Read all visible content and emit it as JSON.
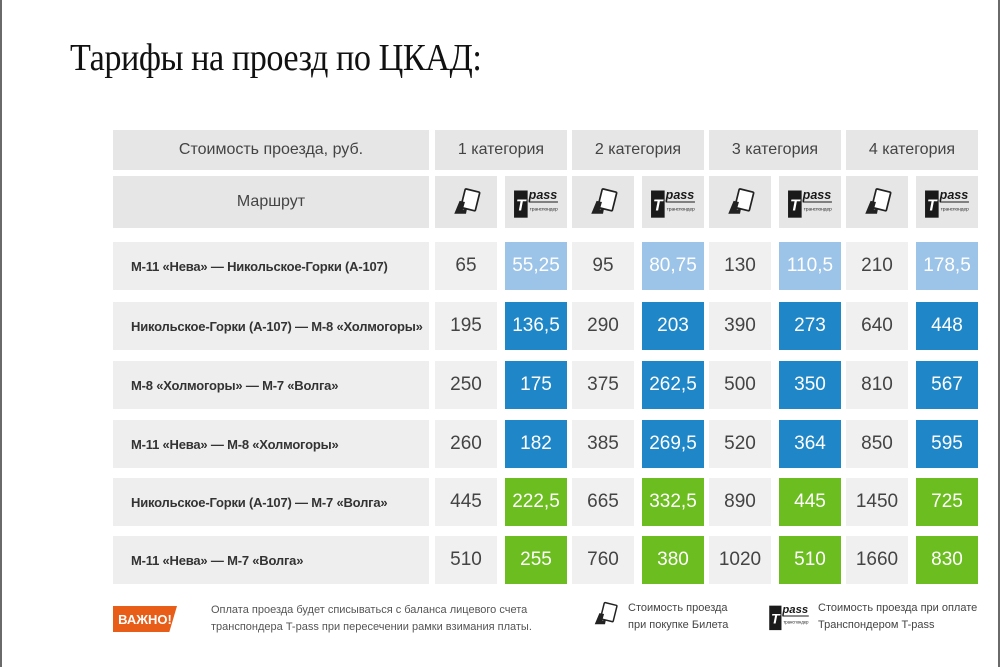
{
  "title": "Тарифы на проезд по ЦКАД:",
  "header": {
    "cost_label": "Стоимость проезда, руб.",
    "route_label": "Маршрут",
    "categories": [
      "1 категория",
      "2 категория",
      "3 категория",
      "4 категория"
    ],
    "tpass_word": "pass",
    "tpass_sub": "транспондер"
  },
  "rows": [
    {
      "route": "М-11 «Нева» — Никольское-Горки (А-107)",
      "values": [
        "65",
        "55,25",
        "95",
        "80,75",
        "130",
        "110,5",
        "210",
        "178,5"
      ],
      "tpass_style": "light"
    },
    {
      "route": "Никольское-Горки (А-107) — М-8 «Холмогоры»",
      "values": [
        "195",
        "136,5",
        "290",
        "203",
        "390",
        "273",
        "640",
        "448"
      ],
      "tpass_style": "blue"
    },
    {
      "route": "М-8 «Холмогоры» — М-7 «Волга»",
      "values": [
        "250",
        "175",
        "375",
        "262,5",
        "500",
        "350",
        "810",
        "567"
      ],
      "tpass_style": "blue"
    },
    {
      "route": "М-11 «Нева» — М-8 «Холмогоры»",
      "values": [
        "260",
        "182",
        "385",
        "269,5",
        "520",
        "364",
        "850",
        "595"
      ],
      "tpass_style": "blue"
    },
    {
      "route": "Никольское-Горки (А-107) — М-7 «Волга»",
      "values": [
        "445",
        "222,5",
        "665",
        "332,5",
        "890",
        "445",
        "1450",
        "725"
      ],
      "tpass_style": "green"
    },
    {
      "route": "М-11 «Нева» — М-7 «Волга»",
      "values": [
        "510",
        "255",
        "760",
        "380",
        "1020",
        "510",
        "1660",
        "830"
      ],
      "tpass_style": "green"
    }
  ],
  "footer": {
    "badge": "ВАЖНО!",
    "note": "Оплата проезда будет списываться с баланса лицевого счета транспондера T-pass при пересечении рамки взимания платы.",
    "ticket_legend": "Стоимость проезда при покупке Билета",
    "tpass_legend": "Стоимость проезда при оплате Транспондером T-pass"
  },
  "colors": {
    "light": "#9cc3e8",
    "blue": "#1f86c8",
    "green": "#6cbd1f",
    "badge": "#e85d17"
  },
  "icons": {
    "ticket": "ticket-hand-icon",
    "tpass": "tpass-logo-icon"
  }
}
